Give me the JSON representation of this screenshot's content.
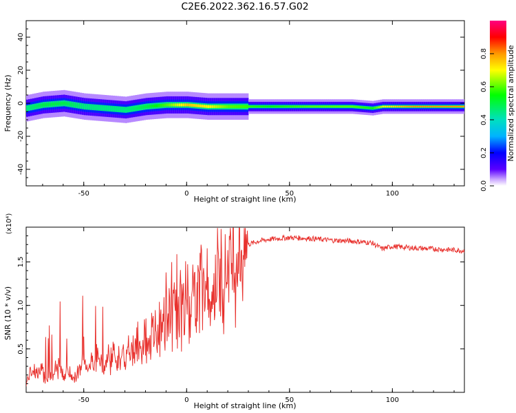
{
  "title": "C2E6.2022.362.16.57.G02",
  "chart_data": [
    {
      "type": "heatmap",
      "xlabel": "Height of straight line (km)",
      "ylabel": "Frequency (Hz)",
      "xlim": [
        -78,
        135
      ],
      "ylim": [
        -50,
        50
      ],
      "xticks": [
        -50,
        0,
        50,
        100
      ],
      "yticks": [
        -40,
        -20,
        0,
        20,
        40
      ],
      "colorbar": {
        "label": "Normalized spectral amplitude",
        "range": [
          0,
          1
        ],
        "ticks": [
          "0.0",
          "0.2",
          "0.4",
          "0.6",
          "0.8"
        ]
      },
      "ridge": {
        "x": [
          -78,
          -70,
          -60,
          -50,
          -40,
          -30,
          -20,
          -10,
          0,
          10,
          20,
          40,
          60,
          80,
          90,
          95,
          110,
          135
        ],
        "freq": [
          -3,
          -1,
          0,
          -2,
          -3,
          -4,
          -2,
          -1,
          -1,
          -2,
          -2,
          -2,
          -2,
          -2,
          -3,
          -2,
          -2,
          -2
        ],
        "amplitude": [
          0.45,
          0.5,
          0.5,
          0.45,
          0.45,
          0.45,
          0.5,
          0.6,
          0.75,
          0.7,
          0.6,
          0.55,
          0.6,
          0.6,
          0.55,
          0.7,
          0.8,
          0.8
        ]
      }
    },
    {
      "type": "line",
      "xlabel": "Height of straight line (km)",
      "ylabel": "SNR (10 * v/v)",
      "multiplier": "(x10⁴)",
      "xlim": [
        -78,
        135
      ],
      "ylim": [
        0,
        1.9
      ],
      "xticks": [
        -50,
        0,
        50,
        100
      ],
      "yticks": [
        0.5,
        1.0,
        1.5
      ],
      "series": [
        {
          "color": "#e8312d",
          "x": [
            -78,
            -75,
            -72,
            -70,
            -68,
            -65,
            -62,
            -60,
            -58,
            -55,
            -52,
            -50,
            -48,
            -45,
            -42,
            -40,
            -38,
            -35,
            -32,
            -30,
            -28,
            -25,
            -22,
            -20,
            -18,
            -15,
            -12,
            -10,
            -8,
            -5,
            -2,
            0,
            2,
            5,
            8,
            10,
            12,
            15,
            18,
            20,
            25,
            30,
            35,
            40,
            50,
            60,
            70,
            80,
            90,
            95,
            100,
            110,
            120,
            135
          ],
          "y": [
            0.1,
            0.3,
            0.2,
            0.25,
            0.15,
            0.2,
            0.3,
            0.2,
            0.25,
            0.15,
            0.3,
            0.35,
            0.3,
            0.4,
            0.35,
            0.3,
            0.4,
            0.45,
            0.35,
            0.4,
            0.45,
            0.5,
            0.5,
            0.6,
            0.55,
            0.7,
            0.75,
            0.8,
            0.85,
            0.9,
            1.0,
            1.05,
            1.1,
            1.15,
            1.2,
            1.1,
            1.2,
            1.3,
            1.4,
            1.5,
            1.6,
            1.7,
            1.74,
            1.76,
            1.78,
            1.77,
            1.75,
            1.74,
            1.72,
            1.65,
            1.68,
            1.66,
            1.65,
            1.63
          ]
        }
      ]
    }
  ]
}
